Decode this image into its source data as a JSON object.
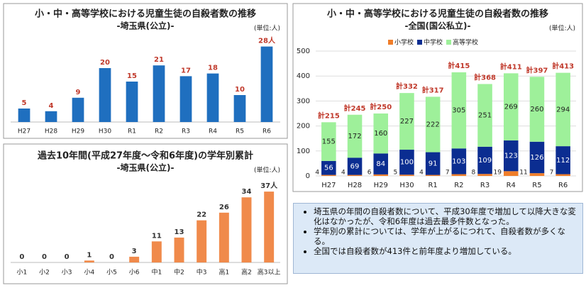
{
  "chart_data": [
    {
      "type": "bar",
      "title": "小・中・高等学校における児童生徒の自殺者数の推移",
      "subtitle": "-埼玉県(公立)-",
      "unit": "(単位:人)",
      "categories": [
        "H27",
        "H28",
        "H29",
        "H30",
        "R1",
        "R2",
        "R3",
        "R4",
        "R5",
        "R6"
      ],
      "values": [
        5,
        4,
        9,
        20,
        15,
        21,
        17,
        18,
        10,
        28
      ],
      "value_labels": [
        "5",
        "4",
        "9",
        "20",
        "15",
        "21",
        "17",
        "18",
        "10",
        "28人"
      ],
      "color": "#1f6fbf",
      "label_color": "#c0392b",
      "ylim": [
        0,
        30
      ]
    },
    {
      "type": "bar",
      "title": "過去10年間(平成27年度～令和6年度)の学年別累計",
      "subtitle": "-埼玉県(公立)-",
      "unit": "(単位:人)",
      "categories": [
        "小1",
        "小2",
        "小3",
        "小4",
        "小5",
        "小6",
        "中1",
        "中2",
        "中3",
        "高1",
        "高2",
        "高3以上"
      ],
      "values": [
        0,
        0,
        0,
        1,
        0,
        3,
        11,
        13,
        22,
        26,
        34,
        37
      ],
      "value_labels": [
        "0",
        "0",
        "0",
        "1",
        "0",
        "3",
        "11",
        "13",
        "22",
        "26",
        "34",
        "37人"
      ],
      "color": "#f08a4b",
      "label_color": "#333333",
      "ylim": [
        0,
        40
      ]
    },
    {
      "type": "stacked_bar",
      "title": "小・中・高等学校における児童生徒の自殺者数の推移",
      "subtitle": "-全国(国公私立)-",
      "unit": "(単位:人)",
      "categories": [
        "H27",
        "H28",
        "H29",
        "H30",
        "R1",
        "R2",
        "R3",
        "R4",
        "R5",
        "R6"
      ],
      "series": [
        {
          "name": "小学校",
          "color": "#f07e2a",
          "values": [
            4,
            4,
            6,
            5,
            4,
            7,
            8,
            19,
            11,
            7
          ]
        },
        {
          "name": "中学校",
          "color": "#0b2d91",
          "values": [
            56,
            69,
            84,
            100,
            91,
            103,
            109,
            123,
            126,
            112
          ]
        },
        {
          "name": "高等学校",
          "color": "#9ef09a",
          "values": [
            155,
            172,
            160,
            227,
            222,
            305,
            251,
            269,
            260,
            294
          ]
        }
      ],
      "totals": [
        215,
        245,
        250,
        332,
        317,
        415,
        368,
        411,
        397,
        413
      ],
      "total_labels": [
        "計215",
        "計245",
        "計250",
        "計332",
        "計317",
        "計415",
        "計368",
        "計411",
        "計397",
        "計413"
      ],
      "total_color": "#c0392b",
      "ylim": [
        0,
        500
      ],
      "yticks": [
        0,
        100,
        200,
        300,
        400,
        500
      ],
      "grid": true
    }
  ],
  "notes": [
    "埼玉県の年間の自殺者数について、平成30年度で増加して以降大きな変化はなかったが、令和6年度は過去最多件数となった。",
    "学年別の累計については、学年が上がるにつれて、自殺者数が多くなる。",
    "全国では自殺者数が413件と前年度より増加している。"
  ]
}
